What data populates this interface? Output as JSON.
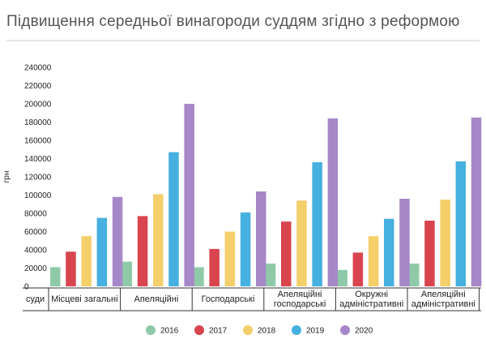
{
  "title": "Підвищення середньої винагороди суддям згідно з реформою",
  "chart_data": {
    "type": "bar",
    "ylabel": "грн",
    "xlabel": "суди",
    "ylim": [
      0,
      240000
    ],
    "yticks": [
      0,
      20000,
      40000,
      60000,
      80000,
      100000,
      120000,
      140000,
      160000,
      180000,
      200000,
      220000,
      240000
    ],
    "grid": false,
    "legend_position": "bottom",
    "categories": [
      [
        "Місцеві загальні"
      ],
      [
        "Апеляційні"
      ],
      [
        "Господарські"
      ],
      [
        "Апеляційні",
        "господарські"
      ],
      [
        "Окружні",
        "адміністративні"
      ],
      [
        "Апеляційні",
        "адміністративні"
      ]
    ],
    "series": [
      {
        "name": "2016",
        "color": "#8fcaa8",
        "values": [
          21000,
          27000,
          21000,
          25000,
          18000,
          25000
        ]
      },
      {
        "name": "2017",
        "color": "#d9454f",
        "values": [
          38000,
          77000,
          41000,
          71000,
          37000,
          72000
        ]
      },
      {
        "name": "2018",
        "color": "#f4cf6a",
        "values": [
          55000,
          101000,
          60000,
          94000,
          55000,
          95000
        ]
      },
      {
        "name": "2019",
        "color": "#46b0e0",
        "values": [
          75000,
          147000,
          81000,
          136000,
          74000,
          137000
        ]
      },
      {
        "name": "2020",
        "color": "#a688c8",
        "values": [
          98000,
          200000,
          104000,
          184000,
          96000,
          185000
        ]
      }
    ]
  }
}
